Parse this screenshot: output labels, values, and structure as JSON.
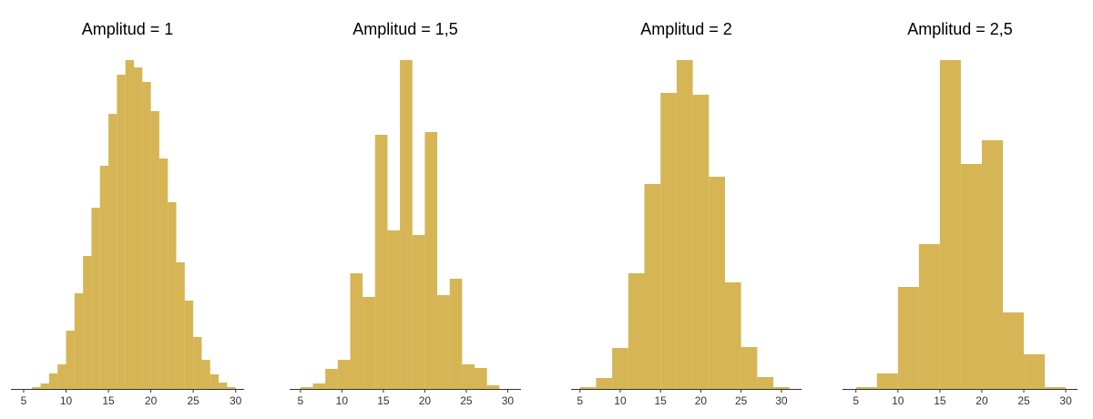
{
  "chart_data": [
    {
      "type": "histogram",
      "title": "Amplitud = 1",
      "color": "#d6b555",
      "bins": [
        6,
        7,
        8,
        9,
        10,
        11,
        12,
        13,
        14,
        15,
        16,
        17,
        18,
        19,
        20,
        21,
        22,
        23,
        24,
        25,
        26,
        27,
        28,
        29,
        30
      ],
      "counts": [
        2,
        6,
        17,
        27,
        64,
        105,
        146,
        199,
        245,
        302,
        345,
        361,
        353,
        337,
        305,
        253,
        205,
        139,
        97,
        57,
        32,
        16,
        7,
        2
      ],
      "xlim": [
        3.5,
        31
      ],
      "xticks": [
        5,
        10,
        15,
        20,
        25,
        30
      ]
    },
    {
      "type": "histogram",
      "title": "Amplitud = 1,5",
      "color": "#d6b555",
      "bins": [
        5,
        6.5,
        8,
        9.5,
        11,
        12.5,
        14,
        15.5,
        17,
        18.5,
        20,
        21.5,
        23,
        24.5,
        26,
        27.5,
        29
      ],
      "counts": [
        2,
        6,
        22,
        32,
        127,
        101,
        279,
        174,
        361,
        169,
        282,
        103,
        121,
        27,
        23,
        4
      ],
      "xlim": [
        3.7,
        31.6
      ],
      "xticks": [
        5,
        10,
        15,
        20,
        25,
        30
      ]
    },
    {
      "type": "histogram",
      "title": "Amplitud = 2",
      "color": "#d6b555",
      "bins": [
        5,
        7,
        9,
        11,
        13,
        15,
        17,
        19,
        21,
        23,
        25,
        27,
        29,
        31
      ],
      "counts": [
        2,
        12,
        45,
        127,
        225,
        325,
        361,
        323,
        233,
        117,
        46,
        13,
        2
      ],
      "xlim": [
        3.9,
        32.5
      ],
      "xticks": [
        5,
        10,
        15,
        20,
        25,
        30
      ]
    },
    {
      "type": "histogram",
      "title": "Amplitud = 2,5",
      "color": "#d6b555",
      "bins": [
        5,
        7.5,
        10,
        12.5,
        15,
        17.5,
        20,
        22.5,
        25,
        27.5,
        30
      ],
      "counts": [
        2,
        17,
        112,
        159,
        361,
        247,
        273,
        84,
        38,
        2
      ],
      "xlim": [
        3.4,
        31.4
      ],
      "xticks": [
        5,
        10,
        15,
        20,
        25,
        30
      ]
    }
  ]
}
